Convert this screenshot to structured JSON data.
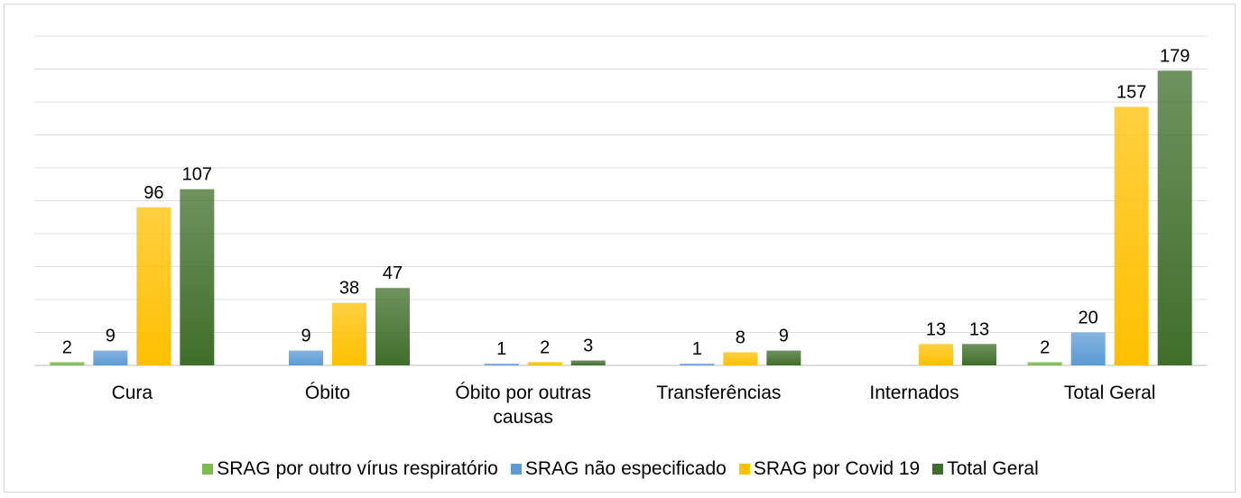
{
  "chart_data": {
    "type": "bar",
    "categories": [
      "Cura",
      "Óbito",
      "Óbito por outras causas",
      "Transferências",
      "Internados",
      "Total Geral"
    ],
    "series": [
      {
        "name": "SRAG por outro vírus respiratório",
        "color": "#7dbb4c",
        "values": [
          2,
          null,
          null,
          null,
          null,
          2
        ]
      },
      {
        "name": "SRAG não especificado",
        "color": "#5b9bd5",
        "values": [
          9,
          9,
          1,
          1,
          null,
          20
        ]
      },
      {
        "name": "SRAG por Covid 19",
        "color": "#ffc000",
        "values": [
          96,
          38,
          2,
          8,
          13,
          157
        ]
      },
      {
        "name": "Total Geral",
        "color": "#3f6e2a",
        "values": [
          107,
          47,
          3,
          9,
          13,
          179
        ]
      }
    ],
    "ylim": [
      0,
      200
    ],
    "yticks": [
      0,
      20,
      40,
      60,
      80,
      100,
      120,
      140,
      160,
      180,
      200
    ],
    "grid": true,
    "legend": "bottom"
  }
}
